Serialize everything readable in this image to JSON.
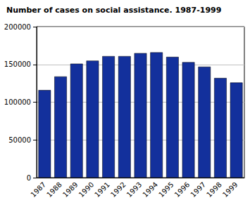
{
  "chart_data": {
    "type": "bar",
    "title": "Number of cases on social assistance. 1987-1999",
    "categories": [
      "1987",
      "1988",
      "1989",
      "1990",
      "1991",
      "1992",
      "1993",
      "1994",
      "1995",
      "1996",
      "1997",
      "1998",
      "1999"
    ],
    "values": [
      116000,
      134000,
      151000,
      155000,
      161000,
      161000,
      165000,
      166000,
      160000,
      153000,
      147000,
      132000,
      126000
    ],
    "color": "#13309c",
    "ylim": [
      0,
      200000
    ],
    "yticks": [
      0,
      50000,
      100000,
      150000,
      200000
    ],
    "grid": true
  }
}
